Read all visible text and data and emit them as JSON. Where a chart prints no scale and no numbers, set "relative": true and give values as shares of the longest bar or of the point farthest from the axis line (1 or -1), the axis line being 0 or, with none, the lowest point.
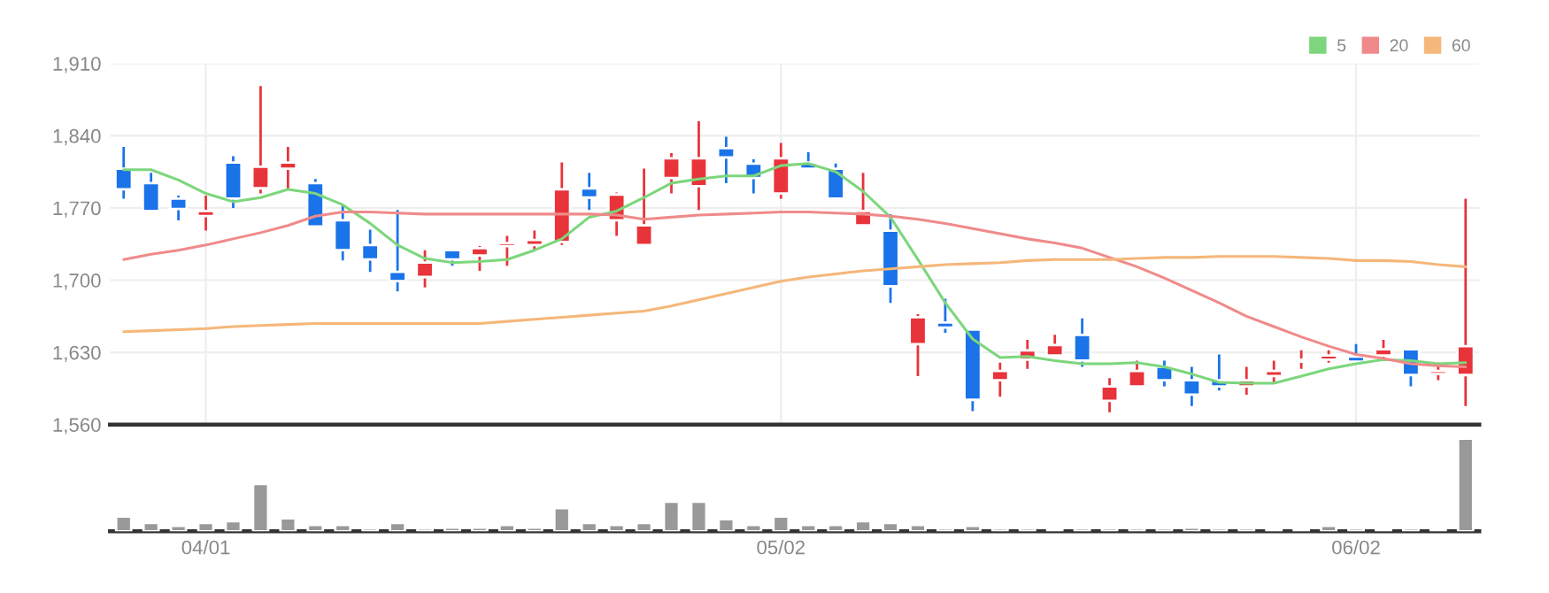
{
  "chart_data": [
    {
      "type": "candlestick",
      "categories": [
        null,
        null,
        null,
        null,
        null,
        null,
        null,
        null,
        null,
        null,
        null,
        null,
        null,
        null,
        null,
        null,
        null,
        null,
        null,
        null,
        null,
        null,
        null,
        null,
        null,
        null,
        null,
        null,
        null,
        null,
        null,
        null,
        null,
        null,
        null,
        null,
        null,
        null,
        null,
        null,
        null,
        null,
        null,
        null,
        null,
        null,
        null,
        null,
        null,
        null
      ],
      "ohlc": [
        [
          1808,
          1829,
          1779,
          1788
        ],
        [
          1794,
          1804,
          1767,
          1767
        ],
        [
          1779,
          1782,
          1758,
          1769
        ],
        [
          1762,
          1782,
          1748,
          1767
        ],
        [
          1814,
          1820,
          1770,
          1779
        ],
        [
          1789,
          1888,
          1784,
          1810
        ],
        [
          1808,
          1829,
          1788,
          1814
        ],
        [
          1794,
          1798,
          1752,
          1752
        ],
        [
          1758,
          1773,
          1719,
          1729
        ],
        [
          1734,
          1749,
          1708,
          1720
        ],
        [
          1708,
          1768,
          1689,
          1699
        ],
        [
          1703,
          1729,
          1693,
          1717
        ],
        [
          1729,
          1729,
          1714,
          1720
        ],
        [
          1724,
          1733,
          1709,
          1731
        ],
        [
          1733,
          1743,
          1714,
          1736
        ],
        [
          1734,
          1748,
          1729,
          1739
        ],
        [
          1737,
          1814,
          1734,
          1788
        ],
        [
          1789,
          1804,
          1768,
          1780
        ],
        [
          1758,
          1785,
          1743,
          1783
        ],
        [
          1734,
          1808,
          1734,
          1753
        ],
        [
          1799,
          1823,
          1784,
          1818
        ],
        [
          1791,
          1854,
          1768,
          1818
        ],
        [
          1828,
          1839,
          1794,
          1819
        ],
        [
          1813,
          1817,
          1784,
          1799
        ],
        [
          1784,
          1833,
          1779,
          1818
        ],
        [
          1814,
          1824,
          1808,
          1808
        ],
        [
          1808,
          1813,
          1779,
          1779
        ],
        [
          1753,
          1804,
          1753,
          1767
        ],
        [
          1748,
          1764,
          1678,
          1694
        ],
        [
          1638,
          1667,
          1607,
          1664
        ],
        [
          1659,
          1682,
          1649,
          1654
        ],
        [
          1652,
          1652,
          1573,
          1584
        ],
        [
          1603,
          1620,
          1587,
          1612
        ],
        [
          1623,
          1642,
          1614,
          1632
        ],
        [
          1627,
          1647,
          1627,
          1637
        ],
        [
          1647,
          1663,
          1616,
          1622
        ],
        [
          1583,
          1605,
          1572,
          1597
        ],
        [
          1597,
          1622,
          1597,
          1612
        ],
        [
          1616,
          1622,
          1597,
          1603
        ],
        [
          1603,
          1616,
          1578,
          1589
        ],
        [
          1603,
          1628,
          1593,
          1597
        ],
        [
          1597,
          1616,
          1589,
          1603
        ],
        [
          1607,
          1622,
          1601,
          1612
        ],
        [
          1621,
          1632,
          1614,
          1623
        ],
        [
          1623,
          1632,
          1620,
          1627
        ],
        [
          1626,
          1638,
          1621,
          1621
        ],
        [
          1627,
          1642,
          1625,
          1633
        ],
        [
          1633,
          1633,
          1597,
          1608
        ],
        [
          1609,
          1620,
          1603,
          1612
        ],
        [
          1608,
          1779,
          1578,
          1636
        ]
      ],
      "colors": [
        "#1a73e8",
        "#1a73e8",
        "#1a73e8",
        "#e8333a",
        "#1a73e8",
        "#e8333a",
        "#e8333a",
        "#1a73e8",
        "#1a73e8",
        "#1a73e8",
        "#1a73e8",
        "#e8333a",
        "#1a73e8",
        "#e8333a",
        "#e8333a",
        "#e8333a",
        "#e8333a",
        "#1a73e8",
        "#e8333a",
        "#e8333a",
        "#e8333a",
        "#e8333a",
        "#1a73e8",
        "#1a73e8",
        "#e8333a",
        "#1a73e8",
        "#1a73e8",
        "#e8333a",
        "#1a73e8",
        "#e8333a",
        "#1a73e8",
        "#1a73e8",
        "#e8333a",
        "#e8333a",
        "#e8333a",
        "#1a73e8",
        "#e8333a",
        "#e8333a",
        "#1a73e8",
        "#1a73e8",
        "#1a73e8",
        "#e8333a",
        "#e8333a",
        "#e8333a",
        "#e8333a",
        "#1a73e8",
        "#e8333a",
        "#1a73e8",
        "#e8333a",
        "#e8333a"
      ],
      "series": [
        {
          "name": "5",
          "type": "line",
          "color": "#7dd67d",
          "values": [
            1807,
            1807,
            1797,
            1784,
            1776,
            1780,
            1788,
            1784,
            1773,
            1755,
            1734,
            1721,
            1717,
            1718,
            1720,
            1729,
            1740,
            1761,
            1767,
            1780,
            1794,
            1798,
            1801,
            1801,
            1811,
            1813,
            1805,
            1786,
            1761,
            1720,
            1678,
            1643,
            1625,
            1626,
            1622,
            1619,
            1619,
            1620,
            1616,
            1609,
            1601,
            1600,
            1600,
            1607,
            1614,
            1619,
            1623,
            1622,
            1619,
            1620
          ]
        },
        {
          "name": "20",
          "type": "line",
          "color": "#f08a8a",
          "values": [
            1720,
            1725,
            1729,
            1734,
            1740,
            1746,
            1753,
            1762,
            1766,
            1766,
            1765,
            1764,
            1764,
            1764,
            1764,
            1764,
            1764,
            1764,
            1763,
            1759,
            1761,
            1763,
            1764,
            1765,
            1766,
            1766,
            1765,
            1764,
            1762,
            1759,
            1755,
            1750,
            1745,
            1740,
            1736,
            1731,
            1722,
            1713,
            1702,
            1690,
            1678,
            1665,
            1655,
            1645,
            1636,
            1628,
            1624,
            1619,
            1617,
            1616
          ]
        },
        {
          "name": "60",
          "type": "line",
          "color": "#f5b77a",
          "values": [
            1650,
            1651,
            1652,
            1653,
            1655,
            1656,
            1657,
            1658,
            1658,
            1658,
            1658,
            1658,
            1658,
            1658,
            1660,
            1662,
            1664,
            1666,
            1668,
            1670,
            1675,
            1681,
            1687,
            1693,
            1699,
            1703,
            1706,
            1709,
            1711,
            1713,
            1715,
            1716,
            1717,
            1719,
            1720,
            1720,
            1720,
            1721,
            1722,
            1722,
            1723,
            1723,
            1723,
            1722,
            1721,
            1719,
            1719,
            1718,
            1715,
            1713
          ]
        }
      ],
      "ylim": [
        1560,
        1910
      ],
      "yticks": [
        {
          "value": 1560,
          "label": "1,560"
        },
        {
          "value": 1630,
          "label": "1,630"
        },
        {
          "value": 1700,
          "label": "1,700"
        },
        {
          "value": 1770,
          "label": "1,770"
        },
        {
          "value": 1840,
          "label": "1,840"
        },
        {
          "value": 1910,
          "label": "1,910"
        }
      ],
      "grid": true,
      "legend": "top right",
      "tick_labels": "y"
    },
    {
      "type": "bar",
      "categories": [
        null,
        null,
        null,
        "04/01",
        null,
        null,
        null,
        null,
        null,
        null,
        null,
        null,
        null,
        null,
        null,
        null,
        null,
        null,
        null,
        null,
        null,
        null,
        null,
        null,
        "05/02",
        null,
        null,
        null,
        null,
        null,
        null,
        null,
        null,
        null,
        null,
        null,
        null,
        null,
        null,
        null,
        null,
        null,
        null,
        null,
        null,
        "06/02",
        null,
        null,
        null,
        null
      ],
      "values": [
        0.16,
        0.09,
        0.06,
        0.09,
        0.11,
        0.51,
        0.14,
        0.07,
        0.07,
        0.03,
        0.09,
        0.03,
        0.04,
        0.04,
        0.07,
        0.04,
        0.25,
        0.09,
        0.07,
        0.09,
        0.32,
        0.32,
        0.13,
        0.07,
        0.16,
        0.07,
        0.07,
        0.11,
        0.09,
        0.07,
        0.03,
        0.06,
        0.03,
        0.03,
        0.02,
        0.03,
        0.03,
        0.03,
        0.03,
        0.04,
        0.03,
        0.03,
        0.02,
        0.02,
        0.06,
        0.03,
        0.02,
        0.03,
        0.02,
        1
      ],
      "color": "#999999",
      "relative": true,
      "tick_labels": "x"
    }
  ]
}
